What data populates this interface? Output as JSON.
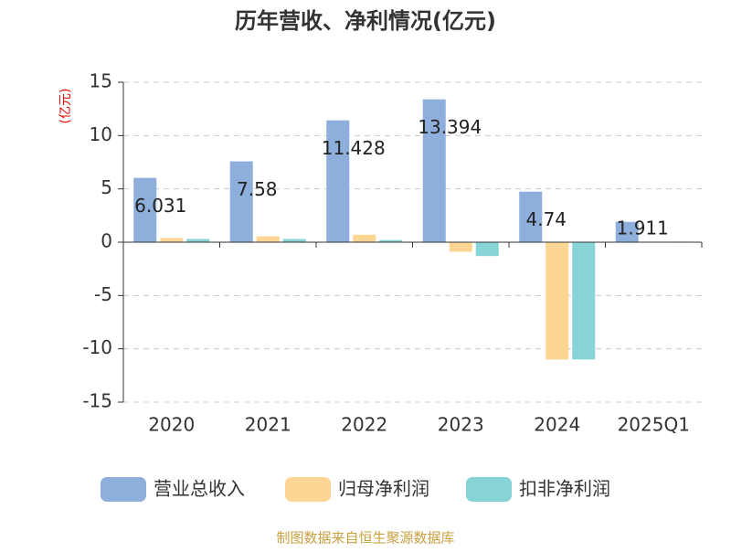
{
  "chart_data": {
    "type": "bar",
    "title": "历年营收、净利情况(亿元)",
    "y_label": "(亿元)",
    "source": "制图数据来自恒生聚源数据库",
    "categories": [
      "2020",
      "2021",
      "2022",
      "2023",
      "2024",
      "2025Q1"
    ],
    "series": [
      {
        "name": "营业总收入",
        "color": "#8eaedb",
        "values": [
          6.031,
          7.58,
          11.428,
          13.394,
          4.74,
          1.911
        ],
        "show_labels": true
      },
      {
        "name": "归母净利润",
        "color": "#fdd694",
        "values": [
          0.4,
          0.55,
          0.7,
          -0.9,
          -11,
          0.05
        ]
      },
      {
        "name": "扣非净利润",
        "color": "#86d4d6",
        "values": [
          0.3,
          0.3,
          0.2,
          -1.3,
          -11,
          0.05
        ]
      }
    ],
    "ylim": [
      -15,
      15
    ],
    "yticks": [
      -15,
      -10,
      -5,
      0,
      5,
      10,
      15
    ],
    "grid": true
  }
}
